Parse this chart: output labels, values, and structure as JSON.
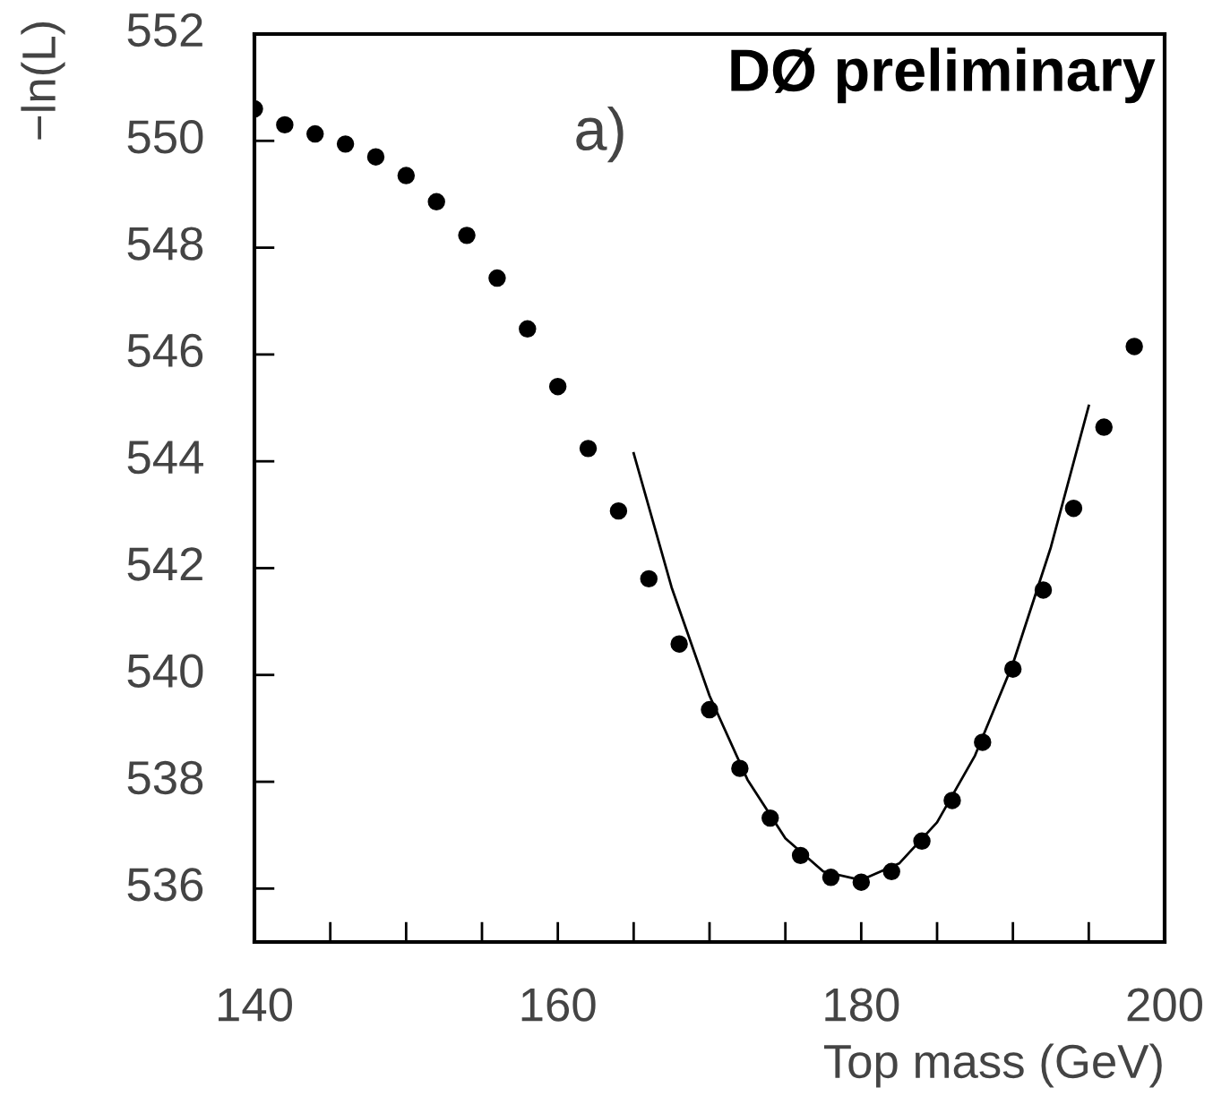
{
  "chart_data": {
    "type": "scatter",
    "title": "DØ preliminary",
    "xlabel": "Top mass (GeV)",
    "ylabel": "−ln(L)",
    "annotations": [
      "a)"
    ],
    "marker": "circle",
    "grid": false,
    "legend": false,
    "xlim": [
      140,
      200
    ],
    "ylim": [
      535,
      552
    ],
    "xticks": [
      140,
      160,
      180,
      200
    ],
    "yticks": [
      536,
      538,
      540,
      542,
      544,
      546,
      548,
      550,
      552
    ],
    "series": [
      {
        "color": "#000000",
        "x": [
          140,
          142,
          144,
          146,
          148,
          150,
          152,
          154,
          156,
          158,
          160,
          162,
          164,
          166,
          168,
          170,
          172,
          174,
          176,
          178,
          180,
          182,
          184,
          186,
          188,
          190,
          192,
          194,
          196,
          198
        ],
        "values": [
          550.6,
          550.3,
          550.13,
          549.94,
          549.7,
          549.35,
          548.86,
          548.23,
          547.43,
          546.48,
          545.4,
          544.24,
          543.07,
          541.8,
          540.58,
          539.35,
          538.25,
          537.32,
          536.62,
          536.21,
          536.12,
          536.32,
          536.89,
          537.65,
          538.74,
          540.11,
          541.59,
          543.12,
          544.64,
          546.15
        ]
      },
      {
        "type": "line",
        "color": "#000000",
        "marker": "none",
        "line_style": "solid",
        "x": [
          165,
          167.5,
          170,
          172.5,
          175,
          177.5,
          180,
          182.5,
          185,
          187.5,
          190,
          192.5,
          195
        ],
        "values": [
          544.15,
          541.64,
          539.61,
          538.04,
          536.94,
          536.32,
          536.16,
          536.47,
          537.24,
          538.49,
          540.21,
          542.39,
          545.04
        ]
      }
    ]
  }
}
